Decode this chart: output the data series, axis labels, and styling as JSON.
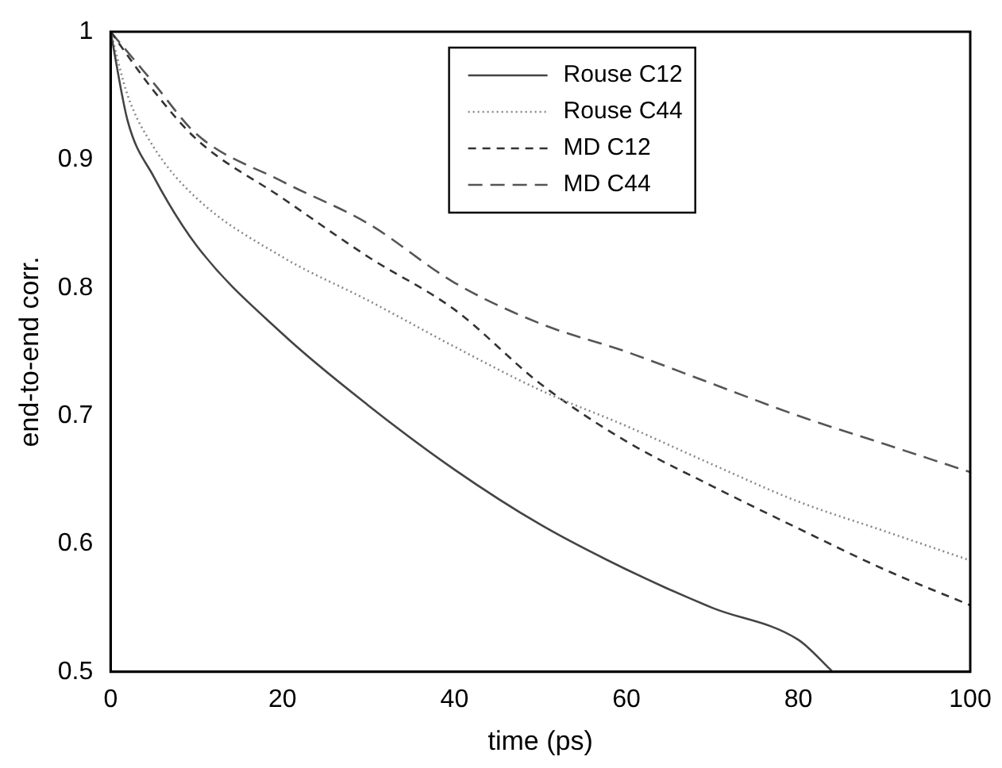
{
  "chart_data": {
    "type": "line",
    "xlabel": "time (ps)",
    "ylabel": "end-to-end corr.",
    "x": [
      0,
      2,
      5,
      10,
      20,
      30,
      40,
      50,
      60,
      70,
      80,
      84
    ],
    "series": [
      {
        "name": "Rouse C12",
        "color": "#444444",
        "line_style": "solid",
        "values": [
          1.0,
          0.93,
          0.887,
          0.833,
          0.764,
          0.708,
          0.658,
          0.615,
          0.58,
          0.55,
          0.525,
          0.5
        ]
      },
      {
        "name": "Rouse C44",
        "color": "#888888",
        "line_style": "dotted",
        "x": [
          0,
          2,
          5,
          10,
          20,
          30,
          40,
          50,
          60,
          70,
          80,
          90,
          100
        ],
        "values": [
          1.0,
          0.95,
          0.91,
          0.87,
          0.824,
          0.79,
          0.754,
          0.72,
          0.692,
          0.662,
          0.633,
          0.61,
          0.587
        ]
      },
      {
        "name": "MD C12",
        "color": "#333333",
        "line_style": "dashed",
        "x": [
          0,
          5,
          10,
          20,
          30,
          40,
          50,
          60,
          70,
          80,
          90,
          100
        ],
        "values": [
          1.0,
          0.954,
          0.916,
          0.87,
          0.824,
          0.783,
          0.725,
          0.68,
          0.645,
          0.612,
          0.58,
          0.552
        ]
      },
      {
        "name": "MD C44",
        "color": "#555555",
        "line_style": "dashed",
        "x": [
          0,
          5,
          10,
          20,
          30,
          40,
          50,
          60,
          70,
          80,
          90,
          100
        ],
        "values": [
          1.0,
          0.96,
          0.92,
          0.883,
          0.85,
          0.804,
          0.772,
          0.75,
          0.725,
          0.7,
          0.678,
          0.656
        ]
      }
    ],
    "xlim": [
      0,
      100
    ],
    "xticks": [
      0,
      20,
      40,
      60,
      80,
      100
    ],
    "ylim": [
      0.5,
      1
    ],
    "yticks": [
      0.5,
      0.6,
      0.7,
      0.8,
      0.9,
      {
        "value": 1,
        "label": "1"
      }
    ],
    "grid": false,
    "legend": "top",
    "marker": "none"
  }
}
